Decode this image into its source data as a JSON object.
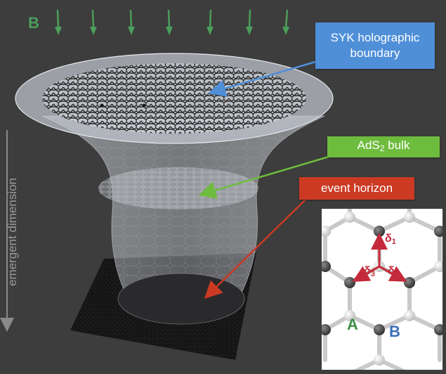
{
  "labels": {
    "magnetic_field": "B",
    "syk_boundary": "SYK holographic boundary",
    "ads2_bulk_prefix": "AdS",
    "ads2_bulk_sub": "2",
    "ads2_bulk_suffix": " bulk",
    "event_horizon": "event horizon",
    "emergent_dimension": "emergent dimension"
  },
  "inset": {
    "bond_symbol": "δ",
    "bond_1": "1",
    "bond_2": "2",
    "bond_3": "3",
    "site_a": "A",
    "site_b": "B"
  },
  "colors": {
    "background": "#3d3d3d",
    "syk_box": "#4f8fd8",
    "ads_box": "#6ebc3e",
    "horizon_box": "#cc3a24",
    "b_arrows": "#4c9e5a",
    "bond_vectors": "#c42a3a",
    "site_a": "#3d8f45",
    "site_b": "#3a6fb8"
  }
}
